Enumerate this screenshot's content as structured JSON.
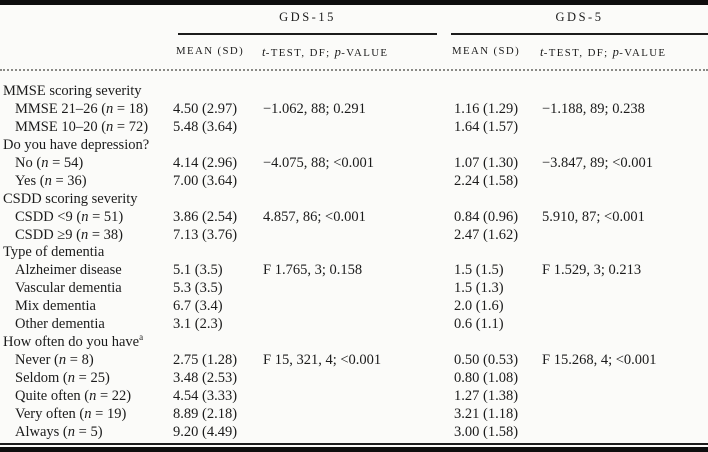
{
  "colors": {
    "background": "#fbfbf9",
    "text": "#1b1b1b",
    "rule": "#0e0e0e",
    "dotted_rule": "#8a8a86"
  },
  "table": {
    "group_headers": [
      {
        "label": "GDS-15"
      },
      {
        "label": "GDS-5"
      }
    ],
    "column_headers": [
      "MEAN (SD)",
      "t-TEST, DF; p-VALUE",
      "MEAN (SD)",
      "t-TEST, DF; p-VALUE"
    ],
    "footnote_marker": "a",
    "rows": [
      {
        "label": "MMSE scoring severity",
        "section": true,
        "cells": [
          "",
          "",
          "",
          ""
        ]
      },
      {
        "label": "MMSE 21–26 (n = 18)",
        "section": false,
        "cells": [
          "4.50 (2.97)",
          "−1.062, 88; 0.291",
          "1.16 (1.29)",
          "−1.188, 89; 0.238"
        ]
      },
      {
        "label": "MMSE 10–20 (n = 72)",
        "section": false,
        "cells": [
          "5.48 (3.64)",
          "",
          "1.64 (1.57)",
          ""
        ]
      },
      {
        "label": "Do you have depression?",
        "section": true,
        "cells": [
          "",
          "",
          "",
          ""
        ]
      },
      {
        "label": "No (n = 54)",
        "section": false,
        "cells": [
          "4.14 (2.96)",
          "−4.075, 88; <0.001",
          "1.07 (1.30)",
          "−3.847, 89; <0.001"
        ]
      },
      {
        "label": "Yes (n = 36)",
        "section": false,
        "cells": [
          "7.00 (3.64)",
          "",
          "2.24 (1.58)",
          ""
        ]
      },
      {
        "label": "CSDD scoring severity",
        "section": true,
        "cells": [
          "",
          "",
          "",
          ""
        ]
      },
      {
        "label": "CSDD <9 (n = 51)",
        "section": false,
        "cells": [
          "3.86 (2.54)",
          "4.857, 86; <0.001",
          "0.84 (0.96)",
          "5.910, 87; <0.001"
        ]
      },
      {
        "label": "CSDD ≥9 (n = 38)",
        "section": false,
        "cells": [
          "7.13 (3.76)",
          "",
          "2.47 (1.62)",
          ""
        ]
      },
      {
        "label": "Type of dementia",
        "section": true,
        "cells": [
          "",
          "",
          "",
          ""
        ]
      },
      {
        "label": "Alzheimer disease",
        "section": false,
        "cells": [
          "5.1 (3.5)",
          "F 1.765, 3; 0.158",
          "1.5 (1.5)",
          "F 1.529, 3; 0.213"
        ]
      },
      {
        "label": "Vascular dementia",
        "section": false,
        "cells": [
          "5.3 (3.5)",
          "",
          "1.5 (1.3)",
          ""
        ]
      },
      {
        "label": "Mix dementia",
        "section": false,
        "cells": [
          "6.7 (3.4)",
          "",
          "2.0 (1.6)",
          ""
        ]
      },
      {
        "label": "Other dementia",
        "section": false,
        "cells": [
          "3.1 (2.3)",
          "",
          "0.6 (1.1)",
          ""
        ]
      },
      {
        "label": "How often do you have",
        "sup": "a",
        "section": true,
        "cells": [
          "",
          "",
          "",
          ""
        ]
      },
      {
        "label": "Never (n = 8)",
        "section": false,
        "cells": [
          "2.75 (1.28)",
          "F 15, 321, 4; <0.001",
          "0.50 (0.53)",
          "F 15.268, 4; <0.001"
        ]
      },
      {
        "label": "Seldom (n = 25)",
        "section": false,
        "cells": [
          "3.48 (2.53)",
          "",
          "0.80 (1.08)",
          ""
        ]
      },
      {
        "label": "Quite often (n = 22)",
        "section": false,
        "cells": [
          "4.54 (3.33)",
          "",
          "1.27 (1.38)",
          ""
        ]
      },
      {
        "label": "Very often (n = 19)",
        "section": false,
        "cells": [
          "8.89 (2.18)",
          "",
          "3.21 (1.18)",
          ""
        ]
      },
      {
        "label": "Always (n = 5)",
        "section": false,
        "cells": [
          "9.20 (4.49)",
          "",
          "3.00 (1.58)",
          ""
        ]
      }
    ]
  }
}
